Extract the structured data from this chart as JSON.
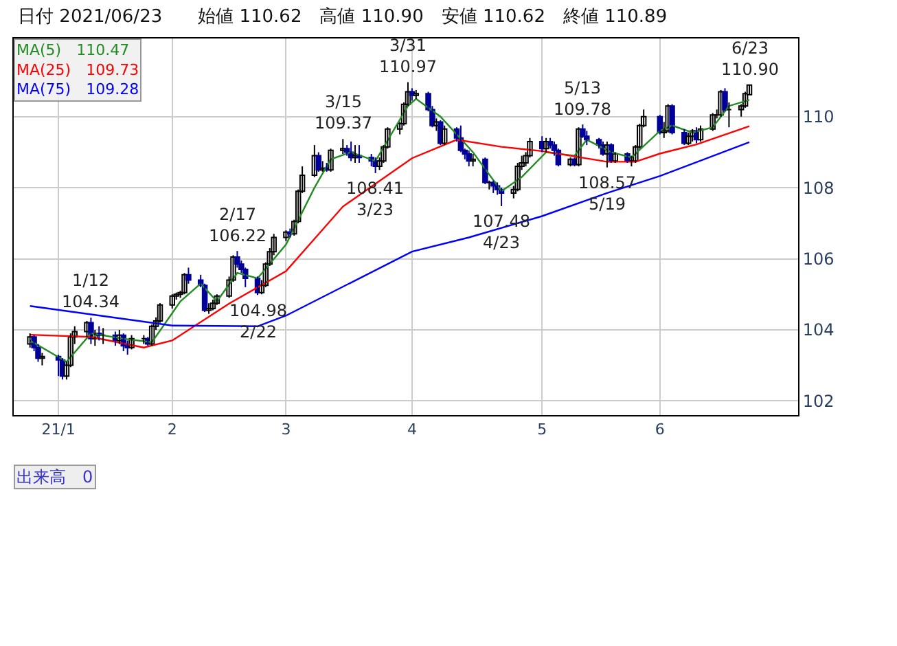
{
  "chart_data": {
    "type": "candlestick",
    "title": "日付 2021/06/23　　始値 110.62　高値 110.90　安値 110.62　終値 110.89",
    "x": [
      "2020-12-28",
      "2020-12-29",
      "2020-12-30",
      "2020-12-31",
      "2021-01-04",
      "2021-01-05",
      "2021-01-06",
      "2021-01-07",
      "2021-01-08",
      "2021-01-11",
      "2021-01-12",
      "2021-01-13",
      "2021-01-14",
      "2021-01-15",
      "2021-01-18",
      "2021-01-19",
      "2021-01-20",
      "2021-01-21",
      "2021-01-22",
      "2021-01-25",
      "2021-01-26",
      "2021-01-27",
      "2021-01-28",
      "2021-01-29",
      "2021-02-01",
      "2021-02-02",
      "2021-02-03",
      "2021-02-04",
      "2021-02-05",
      "2021-02-08",
      "2021-02-09",
      "2021-02-10",
      "2021-02-11",
      "2021-02-12",
      "2021-02-15",
      "2021-02-16",
      "2021-02-17",
      "2021-02-18",
      "2021-02-19",
      "2021-02-22",
      "2021-02-23",
      "2021-02-24",
      "2021-02-25",
      "2021-02-26",
      "2021-03-01",
      "2021-03-02",
      "2021-03-03",
      "2021-03-04",
      "2021-03-05",
      "2021-03-08",
      "2021-03-09",
      "2021-03-10",
      "2021-03-11",
      "2021-03-12",
      "2021-03-15",
      "2021-03-16",
      "2021-03-17",
      "2021-03-18",
      "2021-03-19",
      "2021-03-22",
      "2021-03-23",
      "2021-03-24",
      "2021-03-25",
      "2021-03-26",
      "2021-03-29",
      "2021-03-30",
      "2021-03-31",
      "2021-04-01",
      "2021-04-02",
      "2021-04-05",
      "2021-04-06",
      "2021-04-07",
      "2021-04-08",
      "2021-04-09",
      "2021-04-12",
      "2021-04-13",
      "2021-04-14",
      "2021-04-15",
      "2021-04-16",
      "2021-04-19",
      "2021-04-20",
      "2021-04-21",
      "2021-04-22",
      "2021-04-23",
      "2021-04-26",
      "2021-04-27",
      "2021-04-28",
      "2021-04-29",
      "2021-04-30",
      "2021-05-03",
      "2021-05-04",
      "2021-05-05",
      "2021-05-06",
      "2021-05-07",
      "2021-05-10",
      "2021-05-11",
      "2021-05-12",
      "2021-05-13",
      "2021-05-14",
      "2021-05-17",
      "2021-05-18",
      "2021-05-19",
      "2021-05-20",
      "2021-05-21",
      "2021-05-24",
      "2021-05-25",
      "2021-05-26",
      "2021-05-27",
      "2021-05-28",
      "2021-06-01",
      "2021-06-02",
      "2021-06-03",
      "2021-06-04",
      "2021-06-07",
      "2021-06-08",
      "2021-06-09",
      "2021-06-10",
      "2021-06-11",
      "2021-06-14",
      "2021-06-15",
      "2021-06-16",
      "2021-06-17",
      "2021-06-18",
      "2021-06-21",
      "2021-06-22",
      "2021-06-23"
    ],
    "ohlc": [
      [
        103.6,
        103.9,
        103.5,
        103.8
      ],
      [
        103.8,
        103.85,
        103.4,
        103.5
      ],
      [
        103.5,
        103.6,
        103.1,
        103.2
      ],
      [
        103.2,
        103.35,
        103.0,
        103.25
      ],
      [
        103.25,
        103.3,
        102.7,
        103.15
      ],
      [
        103.15,
        103.2,
        102.6,
        102.7
      ],
      [
        102.7,
        103.1,
        102.6,
        103.0
      ],
      [
        103.0,
        103.9,
        102.95,
        103.8
      ],
      [
        103.8,
        104.1,
        103.6,
        103.95
      ],
      [
        103.95,
        104.25,
        103.8,
        104.2
      ],
      [
        104.2,
        104.34,
        103.6,
        103.75
      ],
      [
        103.75,
        104.0,
        103.55,
        103.9
      ],
      [
        103.9,
        104.1,
        103.7,
        103.85
      ],
      [
        103.85,
        104.05,
        103.6,
        103.85
      ],
      [
        103.85,
        103.95,
        103.55,
        103.7
      ],
      [
        103.7,
        104.0,
        103.6,
        103.85
      ],
      [
        103.85,
        103.9,
        103.4,
        103.55
      ],
      [
        103.55,
        103.7,
        103.3,
        103.5
      ],
      [
        103.5,
        103.85,
        103.45,
        103.75
      ],
      [
        103.75,
        103.85,
        103.6,
        103.75
      ],
      [
        103.75,
        103.8,
        103.55,
        103.6
      ],
      [
        103.6,
        104.15,
        103.55,
        104.1
      ],
      [
        104.1,
        104.35,
        104.0,
        104.25
      ],
      [
        104.25,
        104.75,
        104.2,
        104.7
      ],
      [
        104.7,
        105.0,
        104.6,
        104.95
      ],
      [
        104.95,
        105.05,
        104.85,
        105.0
      ],
      [
        105.0,
        105.1,
        104.9,
        105.05
      ],
      [
        105.05,
        105.6,
        105.0,
        105.55
      ],
      [
        105.55,
        105.75,
        105.3,
        105.4
      ],
      [
        105.4,
        105.55,
        105.2,
        105.25
      ],
      [
        105.25,
        105.3,
        104.5,
        104.55
      ],
      [
        104.55,
        104.75,
        104.45,
        104.6
      ],
      [
        104.6,
        104.85,
        104.55,
        104.75
      ],
      [
        104.75,
        105.0,
        104.7,
        104.95
      ],
      [
        104.95,
        105.5,
        104.9,
        105.4
      ],
      [
        105.4,
        106.1,
        105.35,
        106.05
      ],
      [
        106.05,
        106.22,
        105.75,
        105.85
      ],
      [
        105.85,
        105.95,
        105.6,
        105.7
      ],
      [
        105.7,
        105.75,
        105.2,
        105.45
      ],
      [
        105.45,
        105.5,
        104.98,
        105.05
      ],
      [
        105.05,
        105.4,
        105.0,
        105.25
      ],
      [
        105.25,
        105.9,
        105.2,
        105.85
      ],
      [
        105.85,
        106.3,
        105.8,
        106.2
      ],
      [
        106.2,
        106.7,
        106.1,
        106.6
      ],
      [
        106.6,
        106.8,
        106.5,
        106.75
      ],
      [
        106.75,
        106.85,
        106.6,
        106.7
      ],
      [
        106.7,
        107.1,
        106.65,
        107.05
      ],
      [
        107.05,
        107.95,
        107.0,
        107.9
      ],
      [
        107.9,
        108.6,
        107.85,
        108.35
      ],
      [
        108.35,
        109.2,
        108.3,
        108.9
      ],
      [
        108.9,
        109.0,
        108.45,
        108.5
      ],
      [
        108.5,
        108.75,
        108.45,
        108.55
      ],
      [
        108.55,
        108.7,
        108.45,
        108.5
      ],
      [
        108.5,
        109.1,
        108.45,
        109.05
      ],
      [
        109.05,
        109.37,
        108.95,
        109.1
      ],
      [
        109.1,
        109.2,
        108.9,
        109.0
      ],
      [
        109.0,
        109.3,
        108.75,
        108.85
      ],
      [
        108.85,
        109.2,
        108.7,
        108.9
      ],
      [
        108.9,
        109.2,
        108.7,
        108.85
      ],
      [
        108.85,
        108.95,
        108.6,
        108.75
      ],
      [
        108.75,
        108.85,
        108.41,
        108.6
      ],
      [
        108.6,
        108.85,
        108.5,
        108.75
      ],
      [
        108.75,
        109.2,
        108.7,
        109.15
      ],
      [
        109.15,
        109.7,
        109.1,
        109.65
      ],
      [
        109.65,
        109.85,
        109.5,
        109.8
      ],
      [
        109.8,
        110.4,
        109.75,
        110.35
      ],
      [
        110.35,
        110.97,
        110.3,
        110.7
      ],
      [
        110.7,
        110.8,
        110.45,
        110.6
      ],
      [
        110.6,
        110.75,
        110.5,
        110.65
      ],
      [
        110.65,
        110.7,
        110.15,
        110.2
      ],
      [
        110.2,
        110.3,
        109.7,
        109.75
      ],
      [
        109.75,
        109.95,
        109.6,
        109.85
      ],
      [
        109.85,
        109.9,
        109.2,
        109.25
      ],
      [
        109.25,
        109.75,
        109.2,
        109.65
      ],
      [
        109.65,
        109.7,
        109.3,
        109.4
      ],
      [
        109.4,
        109.75,
        109.0,
        109.05
      ],
      [
        109.05,
        109.1,
        108.8,
        108.95
      ],
      [
        108.95,
        109.05,
        108.6,
        108.75
      ],
      [
        108.75,
        108.95,
        108.6,
        108.8
      ],
      [
        108.8,
        108.85,
        108.1,
        108.15
      ],
      [
        108.15,
        108.2,
        107.95,
        108.15
      ],
      [
        108.15,
        108.2,
        107.85,
        108.05
      ],
      [
        108.05,
        108.15,
        107.8,
        107.95
      ],
      [
        107.95,
        108.0,
        107.48,
        107.85
      ],
      [
        107.85,
        108.05,
        107.7,
        107.95
      ],
      [
        107.95,
        108.7,
        107.9,
        108.6
      ],
      [
        108.6,
        108.9,
        108.5,
        108.7
      ],
      [
        108.7,
        109.0,
        108.6,
        108.9
      ],
      [
        108.9,
        109.4,
        108.85,
        109.3
      ],
      [
        109.3,
        109.45,
        109.0,
        109.1
      ],
      [
        109.1,
        109.4,
        109.0,
        109.3
      ],
      [
        109.3,
        109.4,
        109.1,
        109.2
      ],
      [
        109.2,
        109.3,
        108.9,
        109.05
      ],
      [
        109.05,
        109.1,
        108.6,
        108.65
      ],
      [
        108.65,
        108.85,
        108.6,
        108.8
      ],
      [
        108.8,
        108.85,
        108.6,
        108.65
      ],
      [
        108.65,
        109.7,
        108.6,
        109.65
      ],
      [
        109.65,
        109.78,
        109.4,
        109.45
      ],
      [
        109.45,
        109.6,
        109.2,
        109.35
      ],
      [
        109.35,
        109.4,
        109.1,
        109.2
      ],
      [
        109.2,
        109.3,
        108.9,
        108.95
      ],
      [
        108.95,
        109.3,
        108.57,
        109.2
      ],
      [
        109.2,
        109.25,
        108.7,
        108.75
      ],
      [
        108.75,
        109.0,
        108.7,
        108.95
      ],
      [
        108.95,
        109.0,
        108.7,
        108.75
      ],
      [
        108.75,
        108.9,
        108.6,
        108.75
      ],
      [
        108.75,
        109.2,
        108.7,
        109.15
      ],
      [
        109.15,
        109.8,
        109.1,
        109.75
      ],
      [
        109.75,
        110.2,
        109.7,
        110.0
      ],
      [
        110.0,
        110.05,
        109.5,
        109.55
      ],
      [
        109.55,
        109.85,
        109.4,
        109.6
      ],
      [
        109.6,
        110.35,
        109.55,
        110.3
      ],
      [
        110.3,
        110.35,
        109.5,
        109.55
      ],
      [
        109.55,
        109.65,
        109.2,
        109.25
      ],
      [
        109.25,
        109.55,
        109.2,
        109.45
      ],
      [
        109.45,
        109.65,
        109.3,
        109.6
      ],
      [
        109.6,
        109.7,
        109.25,
        109.35
      ],
      [
        109.35,
        109.75,
        109.3,
        109.65
      ],
      [
        109.65,
        110.1,
        109.6,
        110.05
      ],
      [
        110.05,
        110.2,
        109.95,
        110.05
      ],
      [
        110.05,
        110.75,
        110.0,
        110.7
      ],
      [
        110.7,
        110.8,
        110.15,
        110.2
      ],
      [
        110.2,
        110.4,
        109.7,
        110.2
      ],
      [
        110.2,
        110.35,
        110.0,
        110.3
      ],
      [
        110.3,
        110.7,
        110.25,
        110.65
      ],
      [
        110.62,
        110.9,
        110.62,
        110.89
      ]
    ],
    "series": [
      {
        "type": "line",
        "name": "MA(5)　110.47",
        "color": "#228b22",
        "x": [
          "2020-12-28",
          "2021-01-06",
          "2021-01-12",
          "2021-01-20",
          "2021-01-27",
          "2021-02-03",
          "2021-02-08",
          "2021-02-12",
          "2021-02-17",
          "2021-02-22",
          "2021-03-01",
          "2021-03-08",
          "2021-03-12",
          "2021-03-17",
          "2021-03-23",
          "2021-03-31",
          "2021-04-02",
          "2021-04-08",
          "2021-04-16",
          "2021-04-23",
          "2021-04-28",
          "2021-05-04",
          "2021-05-11",
          "2021-05-14",
          "2021-05-20",
          "2021-05-25",
          "2021-06-01",
          "2021-06-04",
          "2021-06-09",
          "2021-06-14",
          "2021-06-18",
          "2021-06-23"
        ],
        "values": [
          103.7,
          103.1,
          103.9,
          103.75,
          103.65,
          104.8,
          105.3,
          104.8,
          105.6,
          105.45,
          106.4,
          108.0,
          108.8,
          109.0,
          108.75,
          110.3,
          110.5,
          110.0,
          109.0,
          107.9,
          108.3,
          109.0,
          108.9,
          109.35,
          109.0,
          108.85,
          109.6,
          109.75,
          109.55,
          109.7,
          110.3,
          110.47
        ]
      },
      {
        "type": "line",
        "name": "MA(25)　109.73",
        "color": "#ff0000",
        "x": [
          "2020-12-28",
          "2021-01-12",
          "2021-01-25",
          "2021-02-01",
          "2021-02-15",
          "2021-03-01",
          "2021-03-15",
          "2021-04-01",
          "2021-04-12",
          "2021-04-23",
          "2021-05-03",
          "2021-05-19",
          "2021-05-26",
          "2021-06-01",
          "2021-06-10",
          "2021-06-23"
        ],
        "values": [
          103.86,
          103.8,
          103.5,
          103.7,
          104.74,
          105.65,
          107.47,
          108.83,
          109.35,
          109.15,
          109.03,
          108.73,
          108.73,
          108.96,
          109.22,
          109.73
        ]
      },
      {
        "type": "line",
        "name": "MA(75)　109.28",
        "color": "#0000ff",
        "x": [
          "2020-12-28",
          "2021-02-01",
          "2021-02-22",
          "2021-03-01",
          "2021-04-01",
          "2021-04-15",
          "2021-05-03",
          "2021-05-19",
          "2021-06-01",
          "2021-06-23"
        ],
        "values": [
          104.67,
          104.12,
          104.1,
          104.4,
          106.2,
          106.6,
          107.2,
          107.85,
          108.33,
          109.28
        ]
      }
    ],
    "annotations": [
      {
        "text": "1/12\n104.34",
        "x": "2021-01-12",
        "y": 104.34
      },
      {
        "text": "2/17\n106.22",
        "x": "2021-02-17",
        "y": 106.22
      },
      {
        "text": "104.98\n2/22",
        "x": "2021-02-22",
        "y": 104.98
      },
      {
        "text": "3/15\n109.37",
        "x": "2021-03-15",
        "y": 109.37
      },
      {
        "text": "108.41\n3/23",
        "x": "2021-03-23",
        "y": 108.41
      },
      {
        "text": "3/31\n110.97",
        "x": "2021-03-31",
        "y": 110.97
      },
      {
        "text": "107.48\n4/23",
        "x": "2021-04-23",
        "y": 107.48
      },
      {
        "text": "5/13\n109.78",
        "x": "2021-05-13",
        "y": 109.78
      },
      {
        "text": "108.57\n5/19",
        "x": "2021-05-19",
        "y": 108.57
      },
      {
        "text": "6/23\n110.90",
        "x": "2021-06-23",
        "y": 110.9
      },
      "出来高　0"
    ],
    "xlim": [
      "2020-12-24",
      "2021-07-05"
    ],
    "xticks": [
      {
        "value": "2021-01-04",
        "label": "21/1"
      },
      {
        "value": "2021-02-01",
        "label": "2"
      },
      {
        "value": "2021-03-01",
        "label": "3"
      },
      {
        "value": "2021-04-01",
        "label": "4"
      },
      {
        "value": "2021-05-03",
        "label": "5"
      },
      {
        "value": "2021-06-01",
        "label": "6"
      }
    ],
    "ylim": [
      101.6,
      112.2
    ],
    "yticks": [
      102,
      104,
      106,
      108,
      110
    ],
    "grid": true,
    "legend": "top left"
  }
}
